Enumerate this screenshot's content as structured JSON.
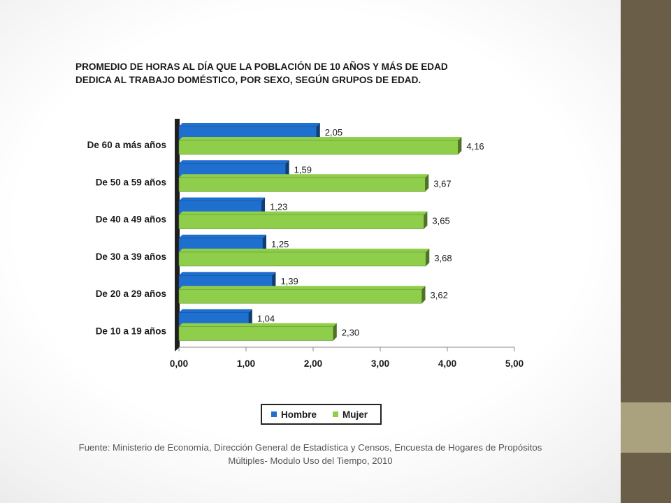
{
  "chart_data": {
    "type": "bar",
    "orientation": "horizontal",
    "title_lines": [
      "PROMEDIO DE HORAS  AL DÍA  QUE LA POBLACIÓN DE 10 AÑOS Y MÁS DE EDAD",
      "DEDICA AL TRABAJO DOMÉSTICO, POR SEXO, SEGÚN GRUPOS DE EDAD."
    ],
    "categories": [
      "De 60 a más años",
      "De 50 a 59 años",
      "De 40 a 49 años",
      "De 30 a 39 años",
      "De 20 a 29 años",
      "De 10 a 19 años"
    ],
    "series": [
      {
        "name": "Hombre",
        "color": "#1f6fcf",
        "values": [
          2.05,
          1.59,
          1.23,
          1.25,
          1.39,
          1.04
        ],
        "labels": [
          "2,05",
          "1,59",
          "1,23",
          "1,25",
          "1,39",
          "1,04"
        ]
      },
      {
        "name": "Mujer",
        "color": "#8fce4a",
        "values": [
          4.16,
          3.67,
          3.65,
          3.68,
          3.62,
          2.3
        ],
        "labels": [
          "4,16",
          "3,67",
          "3,65",
          "3,68",
          "3,62",
          "2,30"
        ]
      }
    ],
    "xlim": [
      0,
      5
    ],
    "xticks": [
      0,
      1,
      2,
      3,
      4,
      5
    ],
    "xtick_labels": [
      "0,00",
      "1,00",
      "2,00",
      "3,00",
      "4,00",
      "5,00"
    ],
    "grid": false,
    "legend_position": "bottom"
  },
  "source_lines": [
    "Fuente: Ministerio de Economía, Dirección General de Estadística y Censos, Encuesta de Hogares de Propósitos",
    "Múltiples- Modulo Uso del Tiempo, 2010"
  ]
}
